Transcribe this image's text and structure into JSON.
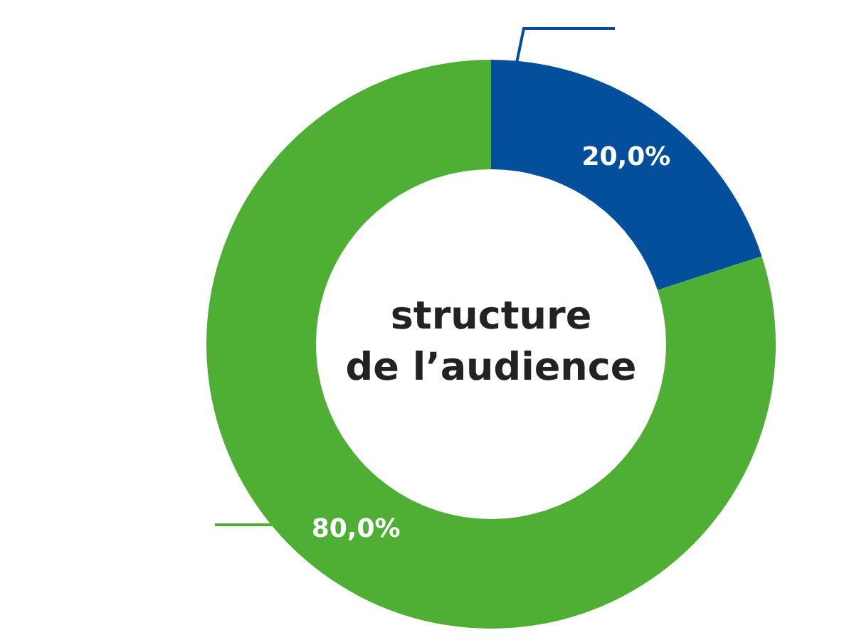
{
  "chart_data": {
    "type": "donut",
    "title": "structure\nde l’audience",
    "categories": [
      null,
      null
    ],
    "values": [
      20,
      80
    ],
    "colors": [
      "#034f9c",
      "#4eaf34"
    ],
    "value_labels": [
      "20,0%",
      "80,0%"
    ],
    "legend": false
  }
}
